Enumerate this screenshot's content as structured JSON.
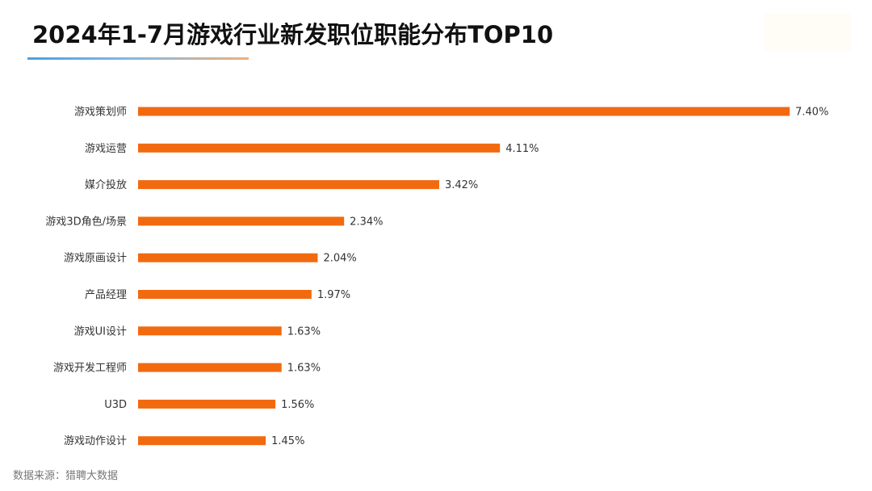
{
  "title": "2024年1-7月游戏行业新发职位职能分布TOP10",
  "source": "数据来源：猎聘大数据",
  "colors": {
    "bar": "#f26a0f",
    "accent_gradient_start": "#4a9fe0",
    "accent_gradient_end": "#f0b07a"
  },
  "chart_data": {
    "type": "bar",
    "orientation": "horizontal",
    "title": "2024年1-7月游戏行业新发职位职能分布TOP10",
    "categories": [
      "游戏策划师",
      "游戏运营",
      "媒介投放",
      "游戏3D角色/场景",
      "游戏原画设计",
      "产品经理",
      "游戏UI设计",
      "游戏开发工程师",
      "U3D",
      "游戏动作设计"
    ],
    "values": [
      7.4,
      4.11,
      3.42,
      2.34,
      2.04,
      1.97,
      1.63,
      1.63,
      1.56,
      1.45
    ],
    "value_labels": [
      "7.40%",
      "4.11%",
      "3.42%",
      "2.34%",
      "2.04%",
      "1.97%",
      "1.63%",
      "1.63%",
      "1.56%",
      "1.45%"
    ],
    "xlim": [
      0,
      7.4
    ],
    "grid": false,
    "legend": "none"
  }
}
